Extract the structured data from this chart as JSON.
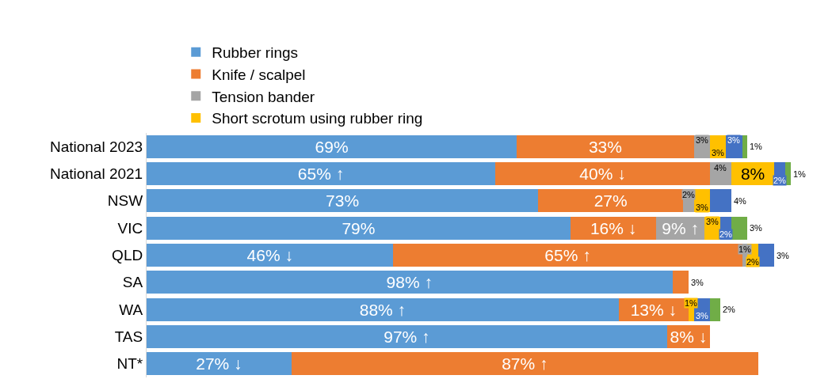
{
  "chart_data": {
    "type": "bar",
    "orientation": "horizontal",
    "stacked": true,
    "legend": "top",
    "categories": [
      "National 2023",
      "National 2021",
      "NSW",
      "VIC",
      "QLD",
      "SA",
      "WA",
      "TAS",
      "NT*"
    ],
    "series": [
      {
        "name": "Rubber rings",
        "color": "#5b9bd5",
        "values": [
          69,
          65,
          73,
          79,
          46,
          98,
          88,
          97,
          27
        ],
        "value_labels": [
          "69%",
          "65% ↑",
          "73%",
          "79%",
          "46% ↓",
          "98% ↑",
          "88% ↑",
          "97% ↑",
          "27% ↓"
        ]
      },
      {
        "name": "Knife / scalpel",
        "color": "#ed7d31",
        "values": [
          33,
          40,
          27,
          16,
          65,
          3,
          13,
          8,
          87
        ],
        "value_labels": [
          "33%",
          "40% ↓",
          "27%",
          "16% ↓",
          "65% ↑",
          "3%",
          "13% ↓",
          "8% ↓",
          "87% ↑"
        ]
      },
      {
        "name": "Tension bander",
        "color": "#a5a5a5",
        "values": [
          3,
          4,
          2,
          9,
          1,
          null,
          null,
          null,
          null
        ],
        "value_labels": [
          "3%",
          "4%",
          "2%",
          "9% ↑",
          "1%",
          null,
          null,
          null,
          null
        ]
      },
      {
        "name": "Short scrotum using rubber ring",
        "color": "#ffc000",
        "values": [
          3,
          8,
          3,
          3,
          2,
          null,
          1,
          null,
          null
        ],
        "value_labels": [
          "3%",
          "8%",
          "3%",
          "3%",
          "2%",
          null,
          "1%",
          null,
          null
        ]
      },
      {
        "color": "#4472c4",
        "values": [
          3,
          2,
          4,
          2,
          3,
          null,
          3,
          null,
          null
        ],
        "value_labels": [
          "3%",
          "2%",
          "4%",
          "2%",
          "3%",
          null,
          "3%",
          null,
          null
        ]
      },
      {
        "color": "#70ad47",
        "values": [
          1,
          1,
          null,
          3,
          null,
          null,
          2,
          null,
          null
        ],
        "value_labels": [
          "1%",
          "1%",
          null,
          "3%",
          null,
          null,
          "2%",
          null,
          null
        ]
      }
    ]
  }
}
